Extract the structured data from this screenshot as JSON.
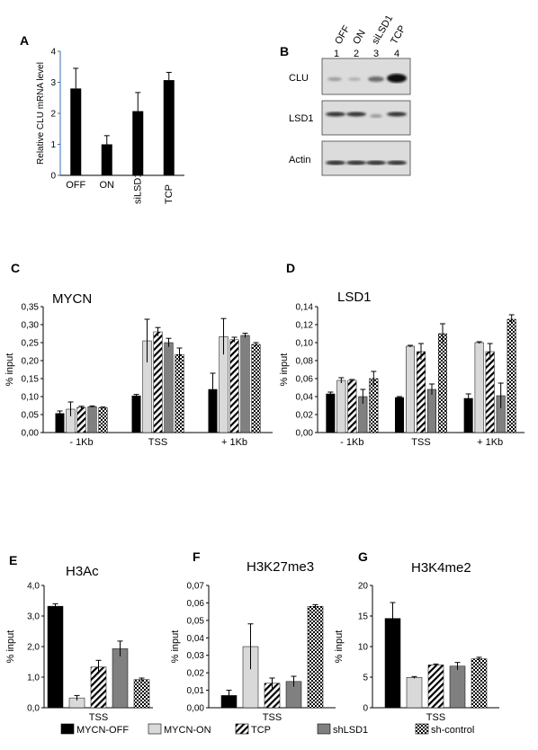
{
  "panel_letters": {
    "A": "A",
    "B": "B",
    "C": "C",
    "D": "D",
    "E": "E",
    "F": "F",
    "G": "G"
  },
  "colors": {
    "MYCN-OFF": "#000000",
    "MYCN-ON": "#d9d9d9",
    "TCP": "hatch",
    "shLSD1": "#808080",
    "sh-control": "checker"
  },
  "legend": [
    "MYCN-OFF",
    "MYCN-ON",
    "TCP",
    "shLSD1",
    "sh-control"
  ],
  "blot": {
    "lane_labels": [
      "OFF",
      "ON",
      "siLSD1",
      "TCP"
    ],
    "lane_numbers": [
      "1",
      "2",
      "3",
      "4"
    ],
    "rows": [
      "CLU",
      "LSD1",
      "Actin"
    ]
  },
  "chart_data": [
    {
      "id": "A",
      "type": "bar",
      "title": "",
      "ylabel": "Relative CLU mRNA level",
      "xlabel": "",
      "categories": [
        "OFF",
        "ON",
        "siLSD1",
        "TCP"
      ],
      "values": [
        2.8,
        1.0,
        2.07,
        3.07
      ],
      "errors": [
        0.65,
        0.28,
        0.6,
        0.25
      ],
      "ylim": [
        0,
        4
      ],
      "yticks": [
        "0",
        "1",
        "2",
        "3",
        "4"
      ],
      "ytick_values": [
        0,
        1,
        2,
        3,
        4
      ]
    },
    {
      "id": "C",
      "type": "bar",
      "title": "MYCN",
      "ylabel": "% input",
      "categories": [
        "- 1Kb",
        "TSS",
        "+ 1Kb"
      ],
      "series": [
        {
          "name": "MYCN-OFF",
          "values": [
            0.053,
            0.102,
            0.12
          ],
          "errors": [
            0.007,
            0.004,
            0.045
          ]
        },
        {
          "name": "MYCN-ON",
          "values": [
            0.065,
            0.255,
            0.267
          ],
          "errors": [
            0.02,
            0.06,
            0.05
          ]
        },
        {
          "name": "TCP",
          "values": [
            0.07,
            0.28,
            0.258
          ],
          "errors": [
            0.003,
            0.012,
            0.007
          ]
        },
        {
          "name": "shLSD1",
          "values": [
            0.072,
            0.25,
            0.27
          ],
          "errors": [
            0.002,
            0.012,
            0.006
          ]
        },
        {
          "name": "sh-control",
          "values": [
            0.069,
            0.217,
            0.245
          ],
          "errors": [
            0.002,
            0.018,
            0.005
          ]
        }
      ],
      "ylim": [
        0,
        0.35
      ],
      "yticks": [
        "0,00",
        "0,05",
        "0,10",
        "0,15",
        "0,20",
        "0,25",
        "0,30",
        "0,35"
      ],
      "ytick_values": [
        0,
        0.05,
        0.1,
        0.15,
        0.2,
        0.25,
        0.3,
        0.35
      ]
    },
    {
      "id": "D",
      "type": "bar",
      "title": "LSD1",
      "ylabel": "% input",
      "categories": [
        "- 1Kb",
        "TSS",
        "+ 1Kb"
      ],
      "series": [
        {
          "name": "MYCN-OFF",
          "values": [
            0.043,
            0.039,
            0.038
          ],
          "errors": [
            0.002,
            0.001,
            0.005
          ]
        },
        {
          "name": "MYCN-ON",
          "values": [
            0.058,
            0.096,
            0.1
          ],
          "errors": [
            0.003,
            0.001,
            0.001
          ]
        },
        {
          "name": "TCP",
          "values": [
            0.058,
            0.09,
            0.09
          ],
          "errors": [
            0.001,
            0.009,
            0.009
          ]
        },
        {
          "name": "shLSD1",
          "values": [
            0.04,
            0.048,
            0.041
          ],
          "errors": [
            0.008,
            0.006,
            0.014
          ]
        },
        {
          "name": "sh-control",
          "values": [
            0.06,
            0.11,
            0.126
          ],
          "errors": [
            0.008,
            0.011,
            0.005
          ]
        }
      ],
      "ylim": [
        0,
        0.14
      ],
      "yticks": [
        "0,00",
        "0,02",
        "0,04",
        "0,06",
        "0,08",
        "0,10",
        "0,12",
        "0,14"
      ],
      "ytick_values": [
        0,
        0.02,
        0.04,
        0.06,
        0.08,
        0.1,
        0.12,
        0.14
      ]
    },
    {
      "id": "E",
      "type": "bar",
      "title": "H3Ac",
      "ylabel": "% input",
      "categories": [
        "TSS"
      ],
      "series": [
        {
          "name": "MYCN-OFF",
          "values": [
            3.32
          ],
          "errors": [
            0.08
          ]
        },
        {
          "name": "MYCN-ON",
          "values": [
            0.32
          ],
          "errors": [
            0.08
          ]
        },
        {
          "name": "TCP",
          "values": [
            1.33
          ],
          "errors": [
            0.22
          ]
        },
        {
          "name": "shLSD1",
          "values": [
            1.93
          ],
          "errors": [
            0.25
          ]
        },
        {
          "name": "sh-control",
          "values": [
            0.92
          ],
          "errors": [
            0.05
          ]
        }
      ],
      "ylim": [
        0,
        4
      ],
      "yticks": [
        "0,0",
        "1,0",
        "2,0",
        "3,0",
        "4,0"
      ],
      "ytick_values": [
        0,
        1,
        2,
        3,
        4
      ]
    },
    {
      "id": "F",
      "type": "bar",
      "title": "H3K27me3",
      "ylabel": "% input",
      "categories": [
        "TSS"
      ],
      "series": [
        {
          "name": "MYCN-OFF",
          "values": [
            0.007
          ],
          "errors": [
            0.003
          ]
        },
        {
          "name": "MYCN-ON",
          "values": [
            0.035
          ],
          "errors": [
            0.013
          ]
        },
        {
          "name": "TCP",
          "values": [
            0.014
          ],
          "errors": [
            0.003
          ]
        },
        {
          "name": "shLSD1",
          "values": [
            0.015
          ],
          "errors": [
            0.003
          ]
        },
        {
          "name": "sh-control",
          "values": [
            0.058
          ],
          "errors": [
            0.001
          ]
        }
      ],
      "ylim": [
        0,
        0.07
      ],
      "yticks": [
        "0,00",
        "0,01",
        "0,02",
        "0,03",
        "0,04",
        "0,05",
        "0,06",
        "0,07"
      ],
      "ytick_values": [
        0,
        0.01,
        0.02,
        0.03,
        0.04,
        0.05,
        0.06,
        0.07
      ]
    },
    {
      "id": "G",
      "type": "bar",
      "title": "H3K4me2",
      "ylabel": "% input",
      "categories": [
        "TSS"
      ],
      "series": [
        {
          "name": "MYCN-OFF",
          "values": [
            14.6
          ],
          "errors": [
            2.6
          ]
        },
        {
          "name": "MYCN-ON",
          "values": [
            4.95
          ],
          "errors": [
            0.15
          ]
        },
        {
          "name": "TCP",
          "values": [
            7.0
          ],
          "errors": [
            0.15
          ]
        },
        {
          "name": "shLSD1",
          "values": [
            6.8
          ],
          "errors": [
            0.6
          ]
        },
        {
          "name": "sh-control",
          "values": [
            8.0
          ],
          "errors": [
            0.25
          ]
        }
      ],
      "ylim": [
        0,
        20
      ],
      "yticks": [
        "0",
        "5",
        "10",
        "15",
        "20"
      ],
      "ytick_values": [
        0,
        5,
        10,
        15,
        20
      ]
    }
  ]
}
